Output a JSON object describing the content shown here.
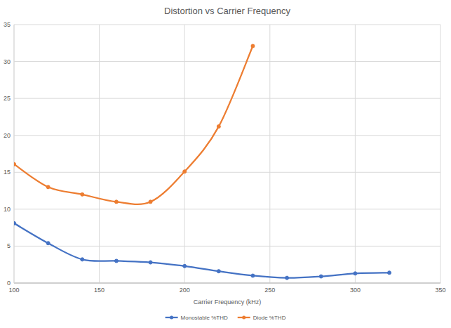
{
  "chart_data": {
    "type": "line",
    "title": "Distortion vs Carrier Frequency",
    "x_label": "Carrier Frequency (kHz)",
    "xlim": [
      100,
      350
    ],
    "xticks": [
      100,
      150,
      200,
      250,
      300,
      350
    ],
    "ylim": [
      0,
      35
    ],
    "yticks": [
      0,
      5,
      10,
      15,
      20,
      25,
      30,
      35
    ],
    "grid": true,
    "legend": "bottom",
    "series": [
      {
        "name": "Monostable %THD",
        "color": "#4472c4",
        "marker": "circle",
        "line_style": "smooth",
        "x": [
          100,
          120,
          140,
          160,
          180,
          200,
          220,
          240,
          260,
          280,
          300,
          320
        ],
        "values": [
          8.1,
          5.4,
          3.2,
          3.0,
          2.8,
          2.3,
          1.6,
          1.0,
          0.7,
          0.9,
          1.3,
          1.4
        ]
      },
      {
        "name": "Diode %THD",
        "color": "#ed7d31",
        "marker": "circle",
        "line_style": "smooth",
        "x": [
          100,
          120,
          140,
          160,
          180,
          200,
          220,
          240
        ],
        "values": [
          16.1,
          13.0,
          12.0,
          11.0,
          11.0,
          15.1,
          21.2,
          32.1
        ]
      }
    ]
  }
}
